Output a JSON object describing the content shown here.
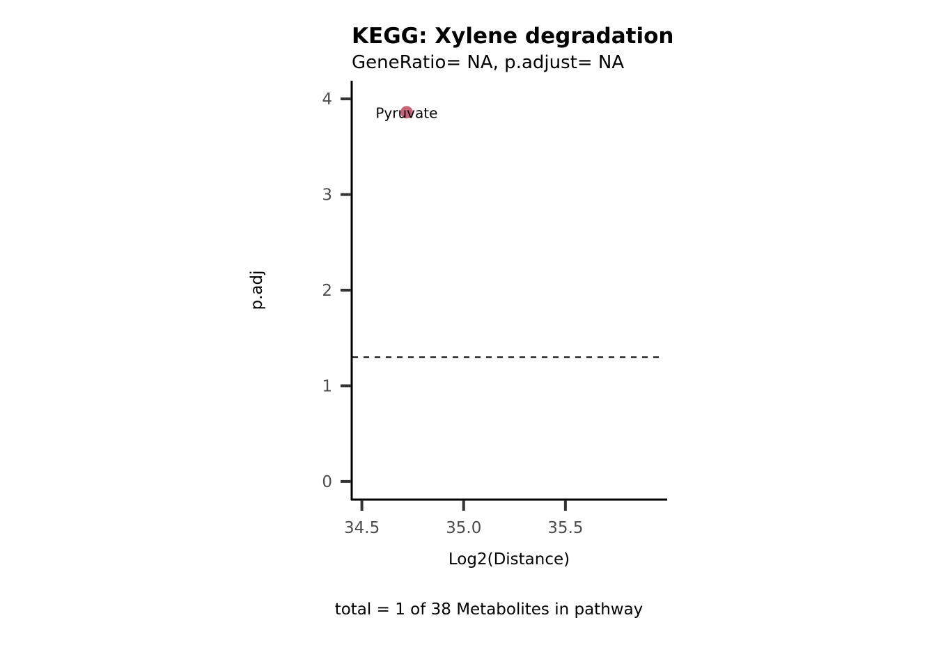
{
  "chart_data": {
    "type": "scatter",
    "title": "KEGG: Xylene degradation",
    "subtitle": "GeneRatio= NA, p.adjust= NA",
    "xlabel": "Log2(Distance)",
    "ylabel": "p.adj",
    "caption": "total = 1 of 38 Metabolites in pathway",
    "xlim": [
      34.45,
      36.0
    ],
    "ylim": [
      -0.19,
      4.19
    ],
    "xticks": [
      {
        "value": 34.5,
        "label": "34.5"
      },
      {
        "value": 35.0,
        "label": "35.0"
      },
      {
        "value": 35.5,
        "label": "35.5"
      }
    ],
    "yticks": [
      {
        "value": 0,
        "label": "0"
      },
      {
        "value": 1,
        "label": "1"
      },
      {
        "value": 2,
        "label": "2"
      },
      {
        "value": 3,
        "label": "3"
      },
      {
        "value": 4,
        "label": "4"
      }
    ],
    "threshold_line": {
      "y": 1.3,
      "style": "dashed",
      "color": "#000000"
    },
    "points": [
      {
        "x": 34.72,
        "y": 3.86,
        "label": "Pyruvate",
        "color": "#c96478"
      }
    ],
    "grid": false,
    "legend": "none"
  }
}
